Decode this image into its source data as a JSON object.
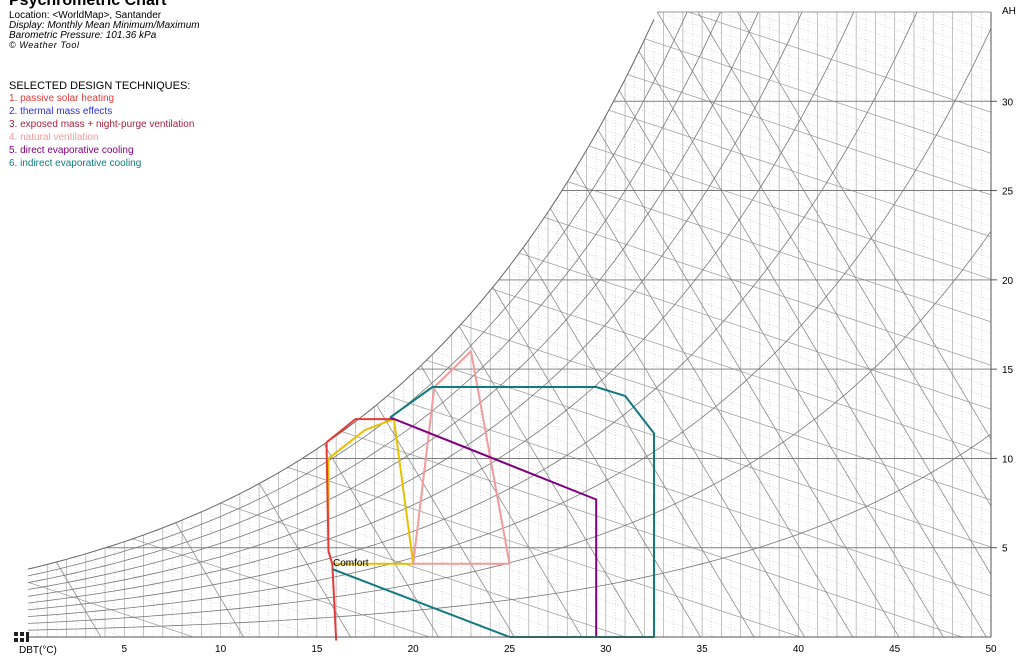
{
  "header": {
    "title": "Psychrometric Chart",
    "location": "Location: <WorldMap>, Santander",
    "display": "Display: Monthly Mean Minimum/Maximum",
    "pressure": "Barometric Pressure: 101.36 kPa",
    "copyright": "© Weather Tool"
  },
  "techniques": {
    "heading": "SELECTED DESIGN TECHNIQUES:",
    "items": [
      {
        "label": "1. passive solar heating",
        "color": "#e53a3a"
      },
      {
        "label": "2. thermal mass effects",
        "color": "#3030d8"
      },
      {
        "label": "3. exposed mass + night-purge ventilation",
        "color": "#a8203c"
      },
      {
        "label": "4. natural ventilation",
        "color": "#f39a9a"
      },
      {
        "label": "5. direct evaporative cooling",
        "color": "#800080"
      },
      {
        "label": "6. indirect evaporative cooling",
        "color": "#107a80"
      }
    ]
  },
  "chart_data": {
    "type": "psychrometric",
    "xlabel": "DBT(°C)",
    "ylabel": "AH",
    "xlim": [
      0,
      50
    ],
    "ylim": [
      0,
      35
    ],
    "x_ticks": [
      5,
      10,
      15,
      20,
      25,
      30,
      35,
      40,
      45,
      50
    ],
    "y_ticks": [
      5,
      10,
      15,
      20,
      25,
      30
    ],
    "comfort_label": "Comfort",
    "zones": [
      {
        "name": "Comfort",
        "color": "#e8c000",
        "points": [
          [
            15.8,
            4.1
          ],
          [
            20,
            4.1
          ],
          [
            19,
            12.2
          ],
          [
            17.5,
            11.6
          ],
          [
            15.6,
            10
          ],
          [
            15.6,
            4.8
          ]
        ]
      },
      {
        "name": "1. passive solar heating",
        "color": "#e53a3a",
        "points": [
          [
            16,
            -0.2
          ],
          [
            15.8,
            4.1
          ],
          [
            15.6,
            4.8
          ],
          [
            15.5,
            10.9
          ],
          [
            17,
            12.2
          ],
          [
            19,
            12.2
          ]
        ]
      },
      {
        "name": "4. natural ventilation",
        "color": "#f39a9a",
        "points": [
          [
            20,
            4.1
          ],
          [
            25,
            4.1
          ],
          [
            23,
            16
          ],
          [
            21.1,
            14
          ]
        ]
      },
      {
        "name": "5. direct evaporative cooling",
        "color": "#800080",
        "points": [
          [
            18.8,
            12.3
          ],
          [
            29.5,
            7.7
          ],
          [
            29.5,
            0
          ]
        ]
      },
      {
        "name": "6. indirect evaporative cooling",
        "color": "#107a80",
        "points": [
          [
            15.8,
            3.8
          ],
          [
            25,
            0
          ],
          [
            32.5,
            0
          ],
          [
            32.5,
            11.4
          ],
          [
            31,
            13.5
          ],
          [
            29.5,
            14
          ],
          [
            21,
            14
          ],
          [
            18.8,
            12.3
          ]
        ]
      }
    ]
  }
}
